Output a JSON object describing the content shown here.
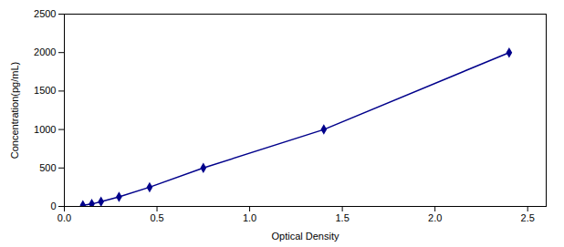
{
  "chart_data": {
    "type": "line",
    "x": [
      0.1,
      0.148,
      0.198,
      0.295,
      0.46,
      0.75,
      1.4,
      2.4
    ],
    "values": [
      15.6,
      31.25,
      62.5,
      125,
      250,
      500,
      1000,
      2000
    ],
    "color": "#00008B",
    "marker": "diamond",
    "line_style": "solid",
    "xlabel": "Optical Density",
    "ylabel": "Concentration(pg/mL)",
    "xlim": [
      0,
      2.6
    ],
    "ylim": [
      0,
      2500
    ],
    "xticks": [
      {
        "value": 0,
        "label": "0.0"
      },
      0.5,
      {
        "value": 1,
        "label": "1.0"
      },
      1.5,
      {
        "value": 2,
        "label": "2.0"
      },
      2.5
    ],
    "yticks": [
      0,
      500,
      1000,
      1500,
      2000,
      2500
    ],
    "grid": false
  }
}
